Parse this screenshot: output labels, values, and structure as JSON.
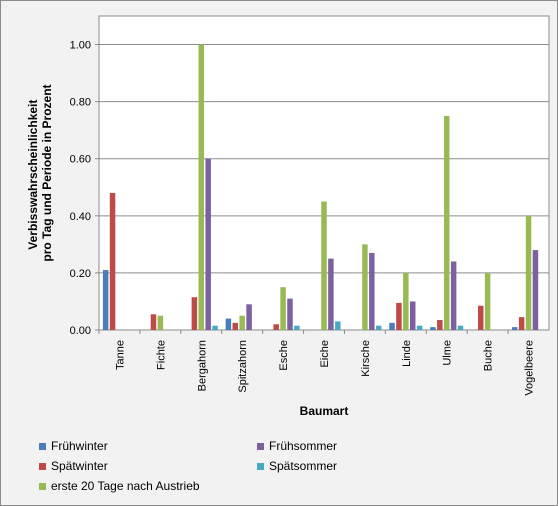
{
  "chart_data": {
    "type": "bar",
    "title": "",
    "xlabel": "Baumart",
    "ylabel": "Verbisswahrscheinlichkeit pro Tag und Periode in Prozent",
    "ylabel_lines": [
      "Verbisswahrscheinlichkeit",
      "pro Tag und Periode in Prozent"
    ],
    "ylim": [
      0,
      1.1
    ],
    "yticks": [
      "0.00",
      "0.20",
      "0.40",
      "0.60",
      "0.80",
      "1.00"
    ],
    "grid": true,
    "legend_position": "bottom",
    "categories": [
      "Tanne",
      "Fichte",
      "Bergahorn",
      "Spitzahorn",
      "Esche",
      "Eiche",
      "Kirsche",
      "Linde",
      "Ulme",
      "Buche",
      "Vogelbeere"
    ],
    "series": [
      {
        "name": "Frühwinter",
        "color": "#4a7ebb",
        "values": [
          0.21,
          0,
          0,
          0.04,
          0,
          0,
          0,
          0.025,
          0.01,
          0,
          0.01
        ]
      },
      {
        "name": "Spätwinter",
        "color": "#be4b48",
        "values": [
          0.48,
          0.055,
          0.115,
          0.025,
          0.02,
          0,
          0,
          0.095,
          0.035,
          0.085,
          0.045
        ]
      },
      {
        "name": "erste 20 Tage nach Austrieb",
        "color": "#98b954",
        "values": [
          0,
          0.05,
          1.0,
          0.05,
          0.15,
          0.45,
          0.3,
          0.2,
          0.75,
          0.2,
          0.4
        ]
      },
      {
        "name": "Frühsommer",
        "color": "#7d60a0",
        "values": [
          0,
          0,
          0.6,
          0.09,
          0.11,
          0.25,
          0.27,
          0.1,
          0.24,
          0,
          0.28
        ]
      },
      {
        "name": "Spätsommer",
        "color": "#46aac5",
        "values": [
          0,
          0,
          0.015,
          0,
          0.015,
          0.03,
          0.015,
          0.015,
          0.015,
          0,
          0
        ]
      }
    ]
  }
}
